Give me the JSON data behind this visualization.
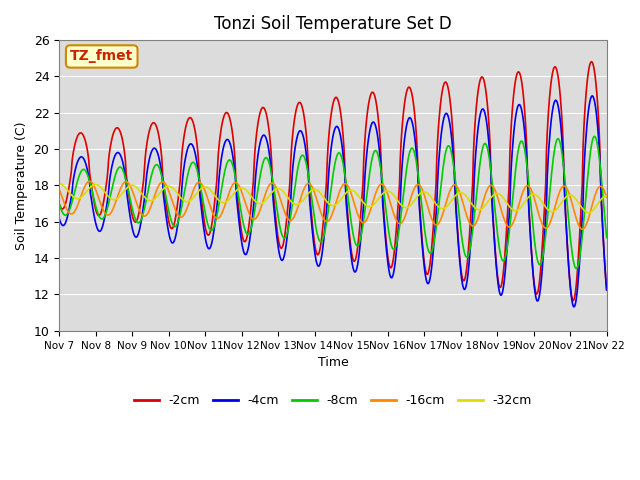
{
  "title": "Tonzi Soil Temperature Set D",
  "xlabel": "Time",
  "ylabel": "Soil Temperature (C)",
  "ylim": [
    10,
    26
  ],
  "xlim": [
    0,
    15
  ],
  "plot_bg": "#dcdcdc",
  "annotation_text": "TZ_fmet",
  "annotation_color": "#cc2200",
  "annotation_bg": "#ffffcc",
  "annotation_border": "#cc8800",
  "xtick_labels": [
    "Nov 7",
    "Nov 8",
    "Nov 9",
    "Nov 10",
    "Nov 11",
    "Nov 12",
    "Nov 13",
    "Nov 14",
    "Nov 15",
    "Nov 16",
    "Nov 17",
    "Nov 18",
    "Nov 19",
    "Nov 20",
    "Nov 21",
    "Nov 22"
  ],
  "legend_labels": [
    "-2cm",
    "-4cm",
    "-8cm",
    "-16cm",
    "-32cm"
  ],
  "line_colors": [
    "#dd0000",
    "#0000ee",
    "#00cc00",
    "#ff8800",
    "#dddd00"
  ]
}
